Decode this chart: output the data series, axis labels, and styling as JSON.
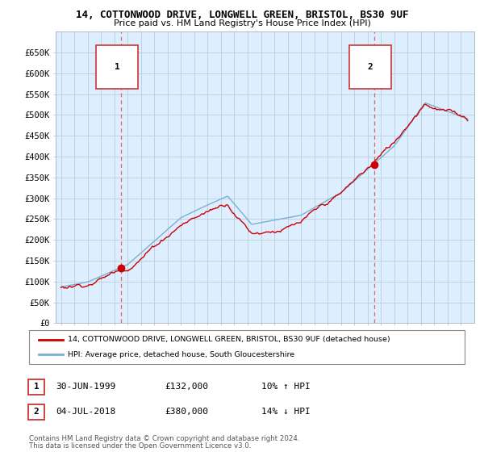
{
  "title": "14, COTTONWOOD DRIVE, LONGWELL GREEN, BRISTOL, BS30 9UF",
  "subtitle": "Price paid vs. HM Land Registry's House Price Index (HPI)",
  "legend_line1": "14, COTTONWOOD DRIVE, LONGWELL GREEN, BRISTOL, BS30 9UF (detached house)",
  "legend_line2": "HPI: Average price, detached house, South Gloucestershire",
  "annotation1_date": "30-JUN-1999",
  "annotation1_price": "£132,000",
  "annotation1_hpi": "10% ↑ HPI",
  "annotation2_date": "04-JUL-2018",
  "annotation2_price": "£380,000",
  "annotation2_hpi": "14% ↓ HPI",
  "footer": "Contains HM Land Registry data © Crown copyright and database right 2024.\nThis data is licensed under the Open Government Licence v3.0.",
  "line_color_red": "#cc0000",
  "line_color_blue": "#7bafd4",
  "dashed_red": "#dd6666",
  "ylim_min": 0,
  "ylim_max": 700000,
  "yticks": [
    0,
    50000,
    100000,
    150000,
    200000,
    250000,
    300000,
    350000,
    400000,
    450000,
    500000,
    550000,
    600000,
    650000
  ],
  "ytick_labels": [
    "£0",
    "£50K",
    "£100K",
    "£150K",
    "£200K",
    "£250K",
    "£300K",
    "£350K",
    "£400K",
    "£450K",
    "£500K",
    "£550K",
    "£600K",
    "£650K"
  ],
  "sale1_year": 1999.5,
  "sale1_price": 132000,
  "sale2_year": 2018.5,
  "sale2_price": 380000,
  "background_color": "#ffffff",
  "plot_bg_color": "#ddeeff",
  "grid_color": "#bbccdd"
}
